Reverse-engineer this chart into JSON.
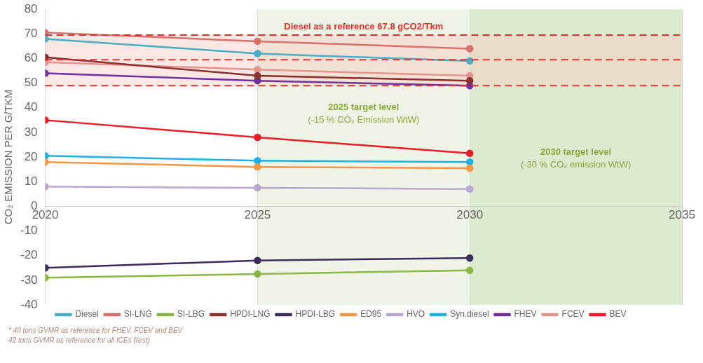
{
  "chart_data": {
    "type": "line",
    "ylabel": "CO₂ EMISSION PER G/TKM",
    "x": [
      2020,
      2025,
      2030
    ],
    "xlim": [
      2020,
      2035
    ],
    "xticks": [
      2020,
      2025,
      2030,
      2035
    ],
    "ylim": [
      -40,
      80
    ],
    "yticks": [
      -40,
      -30,
      -20,
      -10,
      0,
      10,
      20,
      30,
      40,
      50,
      60,
      70,
      80
    ],
    "grid": "x",
    "legend": "bottom",
    "marker": "circle",
    "line_style": "solid",
    "series": [
      {
        "name": "Diesel",
        "color": "#4bacc6",
        "values": [
          68,
          62,
          59
        ]
      },
      {
        "name": "SI-LNG",
        "color": "#d9706a",
        "values": [
          70.5,
          67,
          64
        ]
      },
      {
        "name": "SI-LBG",
        "color": "#8cb543",
        "values": [
          -29,
          -27.5,
          -26
        ]
      },
      {
        "name": "HPDI-LNG",
        "color": "#8b2f2f",
        "values": [
          60.5,
          53,
          51
        ]
      },
      {
        "name": "HPDI-LBG",
        "color": "#3b2a5a",
        "values": [
          -25,
          -22,
          -21
        ]
      },
      {
        "name": "ED95",
        "color": "#f79646",
        "values": [
          18,
          16,
          15.5
        ]
      },
      {
        "name": "HVO",
        "color": "#b9a7d3",
        "values": [
          8,
          7.5,
          7
        ]
      },
      {
        "name": "Syn.diesel",
        "color": "#1fb0e8",
        "values": [
          20.5,
          18.5,
          18
        ]
      },
      {
        "name": "FHEV",
        "color": "#7030a0",
        "values": [
          54,
          51,
          49
        ]
      },
      {
        "name": "FCEV",
        "color": "#e6938f",
        "values": [
          58.5,
          55.5,
          53
        ]
      },
      {
        "name": "BEV",
        "color": "#ee1c25",
        "values": [
          35,
          28,
          21.5
        ]
      }
    ],
    "ref_lines": [
      {
        "axis": "y",
        "value": 69.5,
        "label": "Diesel as a reference 67.8 gCO2/Tkm",
        "color": "#e8302a",
        "line_style": "dashed"
      },
      {
        "axis": "y",
        "value": 59.5,
        "label": null,
        "color": "#e8302a",
        "line_style": "dashed"
      },
      {
        "axis": "y",
        "value": 49,
        "label": null,
        "color": "#e8302a",
        "line_style": "dashed"
      }
    ],
    "bands": [
      {
        "axis": "x",
        "from": 2025,
        "to": 2030,
        "label": "2025 target level\n(-15 % CO₂ Emission WtW)",
        "color": "#eef4e6"
      },
      {
        "axis": "x",
        "from": 2030,
        "to": 2035,
        "label": "2030 target level\n(-30 % CO₂ emission WtW)",
        "color": "#dcebd0"
      },
      {
        "axis": "y",
        "from": 49,
        "to": 69.5,
        "label": null,
        "color": "#f6c9c2"
      }
    ],
    "annotations": [
      "* 40 tons GVMR as reference for FHEV, FCEV and BEV",
      "42 tons GVMR as reference for all ICEs (rest)"
    ]
  }
}
